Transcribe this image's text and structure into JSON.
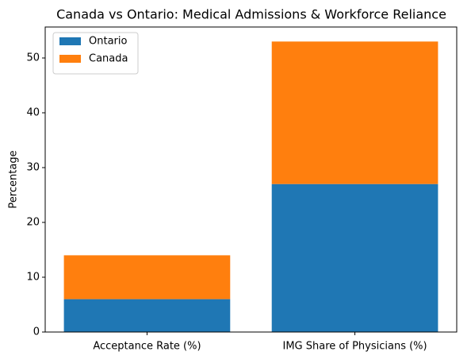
{
  "chart_data": {
    "type": "stacked_bar",
    "title": "Canada vs Ontario: Medical Admissions & Workforce Reliance",
    "categories": [
      "Acceptance Rate (%)",
      "IMG Share of Physicians (%)"
    ],
    "series": [
      {
        "name": "Ontario",
        "color": "#1f77b4",
        "values": [
          6,
          27
        ]
      },
      {
        "name": "Canada",
        "color": "#ff7f0e",
        "values": [
          8,
          26
        ]
      }
    ],
    "ylabel": "Percentage",
    "ylim": [
      0,
      55.65
    ],
    "yticks": [
      0,
      10,
      20,
      30,
      40,
      50
    ],
    "legend": "upper left"
  }
}
